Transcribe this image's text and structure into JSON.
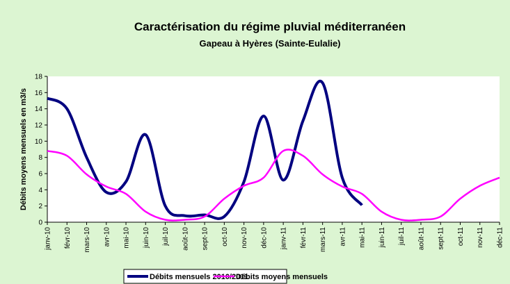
{
  "chart_data": {
    "type": "line",
    "title": "Caractérisation du régime pluvial méditerranéen",
    "subtitle": "Gapeau à Hyères (Sainte-Eulalie)",
    "y_label": "Débits moyens mensuels en m3/s",
    "categories": [
      "janv-10",
      "févr-10",
      "mars-10",
      "avr-10",
      "mai-10",
      "juin-10",
      "juil-10",
      "août-10",
      "sept-10",
      "oct-10",
      "nov-10",
      "déc-10",
      "janv-11",
      "févr-11",
      "mars-11",
      "avr-11",
      "mai-11",
      "juin-11",
      "juil-11",
      "août-11",
      "sept-11",
      "oct-11",
      "nov-11",
      "déc-11"
    ],
    "series": [
      {
        "name": "Débits mensuels 2010/2011",
        "color": "#000080",
        "values": [
          15.3,
          14.0,
          8.0,
          3.7,
          5.0,
          10.8,
          2.0,
          0.8,
          0.9,
          0.7,
          5.0,
          13.1,
          5.2,
          12.5,
          17.2,
          5.5,
          2.1,
          null,
          null,
          null,
          null,
          null,
          null,
          null
        ]
      },
      {
        "name": "Débits moyens mensuels",
        "color": "#ff00ff",
        "values": [
          8.8,
          8.2,
          5.9,
          4.4,
          3.5,
          1.3,
          0.3,
          0.3,
          0.7,
          2.9,
          4.5,
          5.5,
          8.8,
          8.2,
          5.9,
          4.4,
          3.5,
          1.3,
          0.3,
          0.3,
          0.7,
          2.9,
          4.5,
          5.5
        ]
      }
    ],
    "ylim": [
      0,
      18
    ],
    "yticks": [
      0,
      2,
      4,
      6,
      8,
      10,
      12,
      14,
      16,
      18
    ],
    "grid": false,
    "legend": "bottom"
  }
}
